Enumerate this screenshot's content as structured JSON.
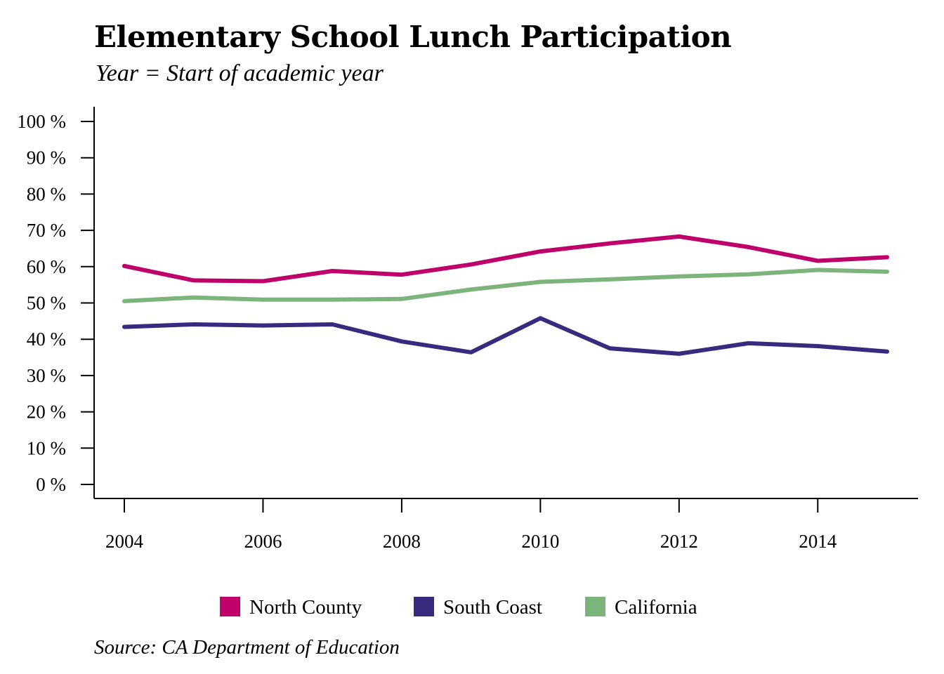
{
  "chart_data": {
    "type": "line",
    "title": "Elementary School Lunch Participation",
    "subtitle": "Year = Start of academic year",
    "source": "Source: CA Department of Education",
    "x": [
      2004,
      2005,
      2006,
      2007,
      2008,
      2009,
      2010,
      2011,
      2012,
      2013,
      2014,
      2015
    ],
    "xticks": [
      "2004",
      "2006",
      "2008",
      "2010",
      "2012",
      "2014"
    ],
    "yticks": [
      "0 %",
      "10 %",
      "20 %",
      "30 %",
      "40 %",
      "50 %",
      "60 %",
      "70 %",
      "80 %",
      "90 %",
      "100 %"
    ],
    "ylim": [
      0,
      100
    ],
    "xlim": [
      2003.55,
      2015.45
    ],
    "legend_position": "bottom",
    "grid": false,
    "series": [
      {
        "name": "North County",
        "color": "#c0006a",
        "values": [
          60.2,
          56.2,
          56.0,
          58.8,
          57.8,
          60.6,
          64.2,
          66.4,
          68.3,
          65.4,
          61.6,
          62.6
        ]
      },
      {
        "name": "South Coast",
        "color": "#382a7e",
        "values": [
          43.4,
          44.1,
          43.8,
          44.1,
          39.4,
          36.4,
          45.8,
          37.5,
          36.0,
          38.9,
          38.1,
          36.6
        ]
      },
      {
        "name": "California",
        "color": "#7db47c",
        "values": [
          50.5,
          51.5,
          50.9,
          50.9,
          51.1,
          53.7,
          55.8,
          56.5,
          57.3,
          57.9,
          59.1,
          58.6
        ]
      }
    ]
  }
}
